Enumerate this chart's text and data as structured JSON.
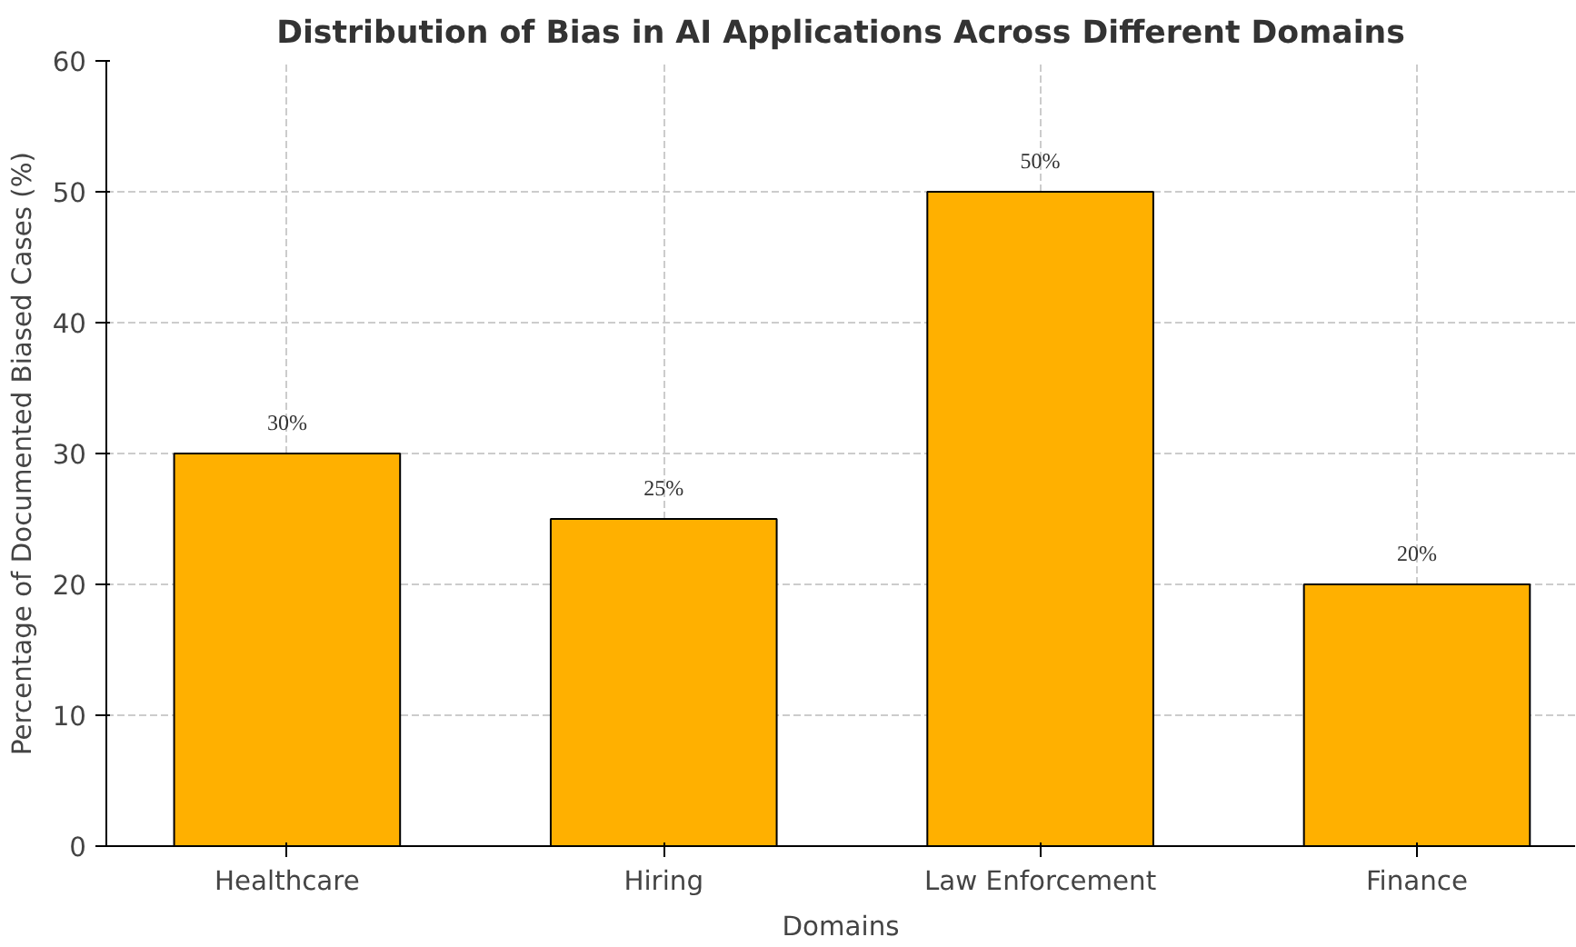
{
  "chart_data": {
    "type": "bar",
    "title": "Distribution of Bias in AI Applications Across Different Domains",
    "xlabel": "Domains",
    "ylabel": "Percentage of Documented Biased Cases (%)",
    "categories": [
      "Healthcare",
      "Hiring",
      "Law Enforcement",
      "Finance"
    ],
    "values": [
      30,
      25,
      50,
      20
    ],
    "value_labels": [
      "30%",
      "25%",
      "50%",
      "20%"
    ],
    "color": "#ffb000",
    "ylim": [
      0,
      60
    ],
    "yticks": [
      0,
      10,
      20,
      30,
      40,
      50,
      60
    ],
    "grid": true
  }
}
